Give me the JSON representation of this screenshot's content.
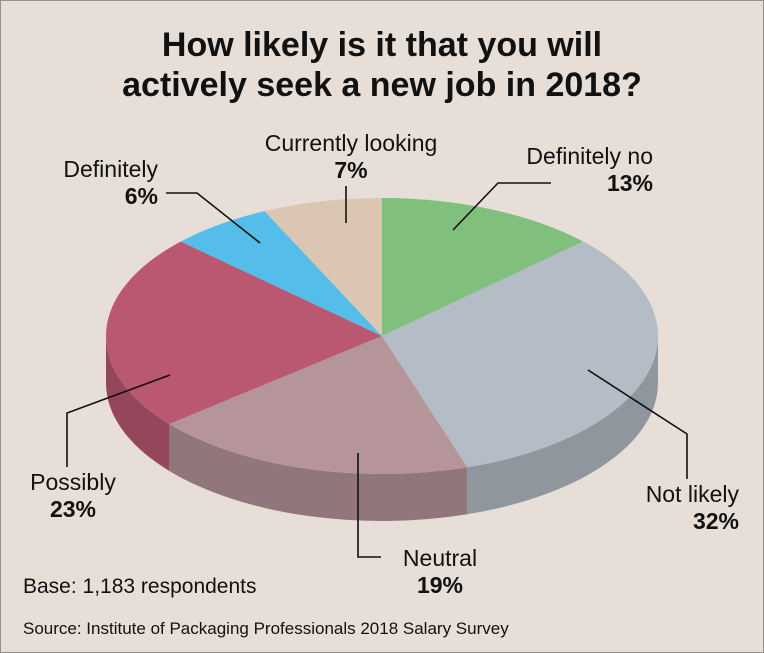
{
  "chart_data": {
    "type": "pie",
    "title_lines": [
      "How likely is it that you will",
      "actively seek a new job in 2018?"
    ],
    "categories": [
      "Definitely no",
      "Not likely",
      "Neutral",
      "Possibly",
      "Definitely",
      "Currently looking"
    ],
    "values": [
      13,
      32,
      19,
      23,
      6,
      7
    ],
    "value_labels": [
      "13%",
      "32%",
      "19%",
      "23%",
      "6%",
      "7%"
    ],
    "colors": [
      "#80c07c",
      "#b4bcc6",
      "#b5959a",
      "#ba5872",
      "#55bde9",
      "#dbc6b4"
    ],
    "style": "3d"
  },
  "footnote": "Base: 1,183 respondents",
  "source": "Source: Institute of Packaging Professionals 2018 Salary Survey"
}
